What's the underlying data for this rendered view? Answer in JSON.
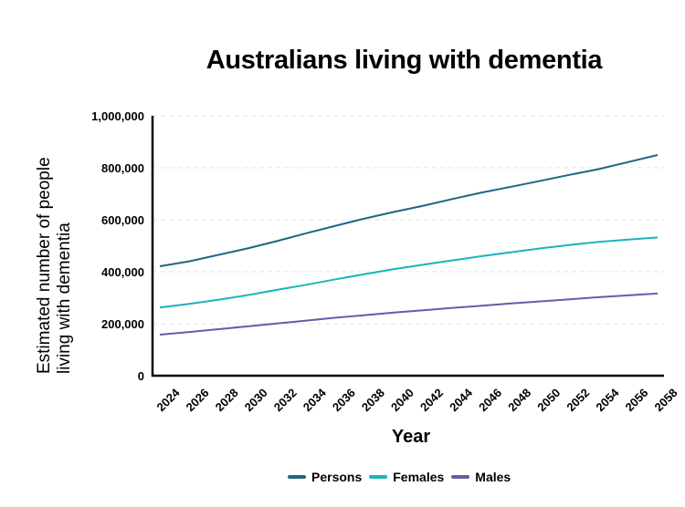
{
  "chart_data": {
    "type": "line",
    "title": "Australians living with dementia",
    "xlabel": "Year",
    "ylabel": "Estimated number of people living with dementia",
    "ylabel_lines": [
      "Estimated number of people",
      "living with dementia"
    ],
    "ylim": [
      0,
      1000000
    ],
    "yticks": [
      0,
      200000,
      400000,
      600000,
      800000,
      1000000
    ],
    "ytick_labels": [
      "0",
      "200,000",
      "400,000",
      "600,000",
      "800,000",
      "1,000,000"
    ],
    "grid": "horizontal dashed",
    "legend_position": "bottom",
    "x": [
      2024,
      2026,
      2028,
      2030,
      2032,
      2034,
      2036,
      2038,
      2040,
      2042,
      2044,
      2046,
      2048,
      2050,
      2052,
      2054,
      2056,
      2058
    ],
    "series": [
      {
        "name": "Persons",
        "color": "#1f6683",
        "values": [
          421000,
          440000,
          465000,
          490000,
          518000,
          548000,
          577000,
          605000,
          630000,
          654000,
          680000,
          705000,
          727000,
          750000,
          773000,
          795000,
          822000,
          849000
        ]
      },
      {
        "name": "Females",
        "color": "#1bb3bd",
        "values": [
          262000,
          276000,
          292000,
          310000,
          330000,
          350000,
          371000,
          391000,
          410000,
          427000,
          444000,
          460000,
          475000,
          490000,
          503000,
          515000,
          524000,
          532000
        ]
      },
      {
        "name": "Males",
        "color": "#6a5aa8",
        "values": [
          158000,
          168000,
          179000,
          190000,
          201000,
          212000,
          223000,
          233000,
          243000,
          252000,
          261000,
          269000,
          278000,
          286000,
          294000,
          302000,
          309000,
          316000
        ]
      }
    ]
  }
}
